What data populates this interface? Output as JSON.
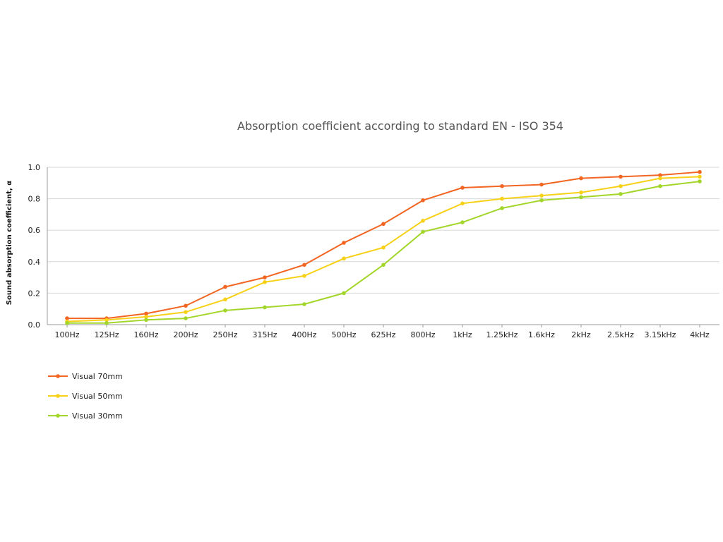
{
  "chart_data": {
    "type": "line",
    "title": "Absorption coefficient according to standard EN - ISO 354",
    "xlabel": "",
    "ylabel": "Sound absorption coefficient, α",
    "ylim": [
      0,
      1.0
    ],
    "yticks": [
      "0.0",
      "0.2",
      "0.4",
      "0.6",
      "0.8",
      "1.0"
    ],
    "grid": true,
    "legend_position": "bottom-left",
    "categories": [
      "100Hz",
      "125Hz",
      "160Hz",
      "200Hz",
      "250Hz",
      "315Hz",
      "400Hz",
      "500Hz",
      "625Hz",
      "800Hz",
      "1kHz",
      "1.25kHz",
      "1.6kHz",
      "2kHz",
      "2.5kHz",
      "3.15kHz",
      "4kHz"
    ],
    "series": [
      {
        "name": "Visual 70mm",
        "color": "#f26522",
        "values": [
          0.04,
          0.04,
          0.07,
          0.12,
          0.24,
          0.3,
          0.38,
          0.52,
          0.64,
          0.79,
          0.87,
          0.88,
          0.89,
          0.93,
          0.94,
          0.95,
          0.97
        ]
      },
      {
        "name": "Visual 50mm",
        "color": "#f7d117",
        "values": [
          0.02,
          0.03,
          0.05,
          0.08,
          0.16,
          0.27,
          0.31,
          0.42,
          0.49,
          0.66,
          0.77,
          0.8,
          0.82,
          0.84,
          0.88,
          0.93,
          0.94
        ]
      },
      {
        "name": "Visual 30mm",
        "color": "#a3d62a",
        "values": [
          0.01,
          0.01,
          0.03,
          0.04,
          0.09,
          0.11,
          0.13,
          0.2,
          0.38,
          0.59,
          0.65,
          0.74,
          0.79,
          0.81,
          0.83,
          0.88,
          0.91
        ]
      }
    ]
  }
}
